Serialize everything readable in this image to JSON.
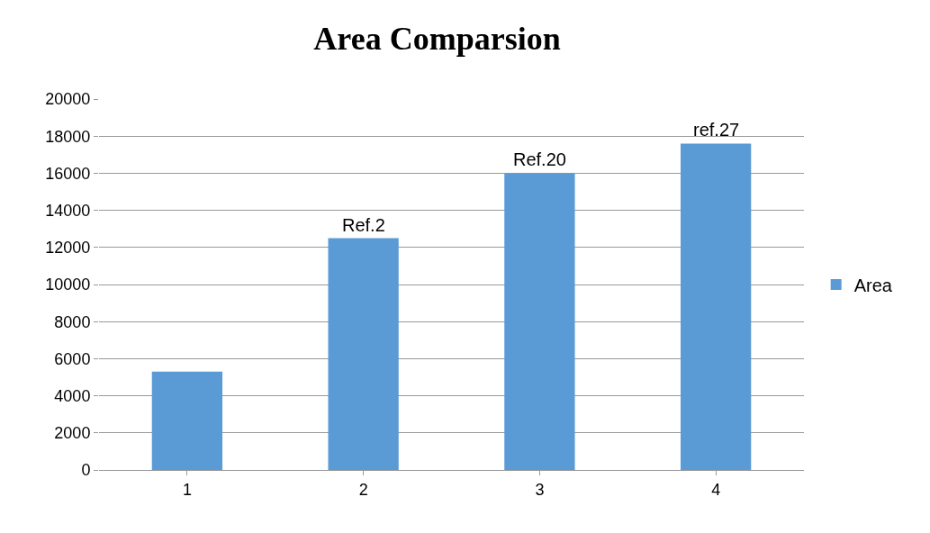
{
  "chart_data": {
    "type": "bar",
    "title": "Area Comparsion",
    "categories": [
      "1",
      "2",
      "3",
      "4"
    ],
    "series": [
      {
        "name": "Area",
        "color": "#5b9bd5",
        "values": [
          5300,
          12500,
          16000,
          17600
        ]
      }
    ],
    "ylim": [
      0,
      20000
    ],
    "yticks": [
      0,
      2000,
      4000,
      6000,
      8000,
      10000,
      12000,
      14000,
      16000,
      18000,
      20000
    ],
    "grid": "y",
    "legend": "right",
    "annotations": [
      {
        "text": "Ref.2",
        "x": "2",
        "y": 12500
      },
      {
        "text": "Ref.20",
        "x": "3",
        "y": 16000
      },
      {
        "text": "ref.27",
        "x": "4",
        "y": 17600
      }
    ]
  }
}
